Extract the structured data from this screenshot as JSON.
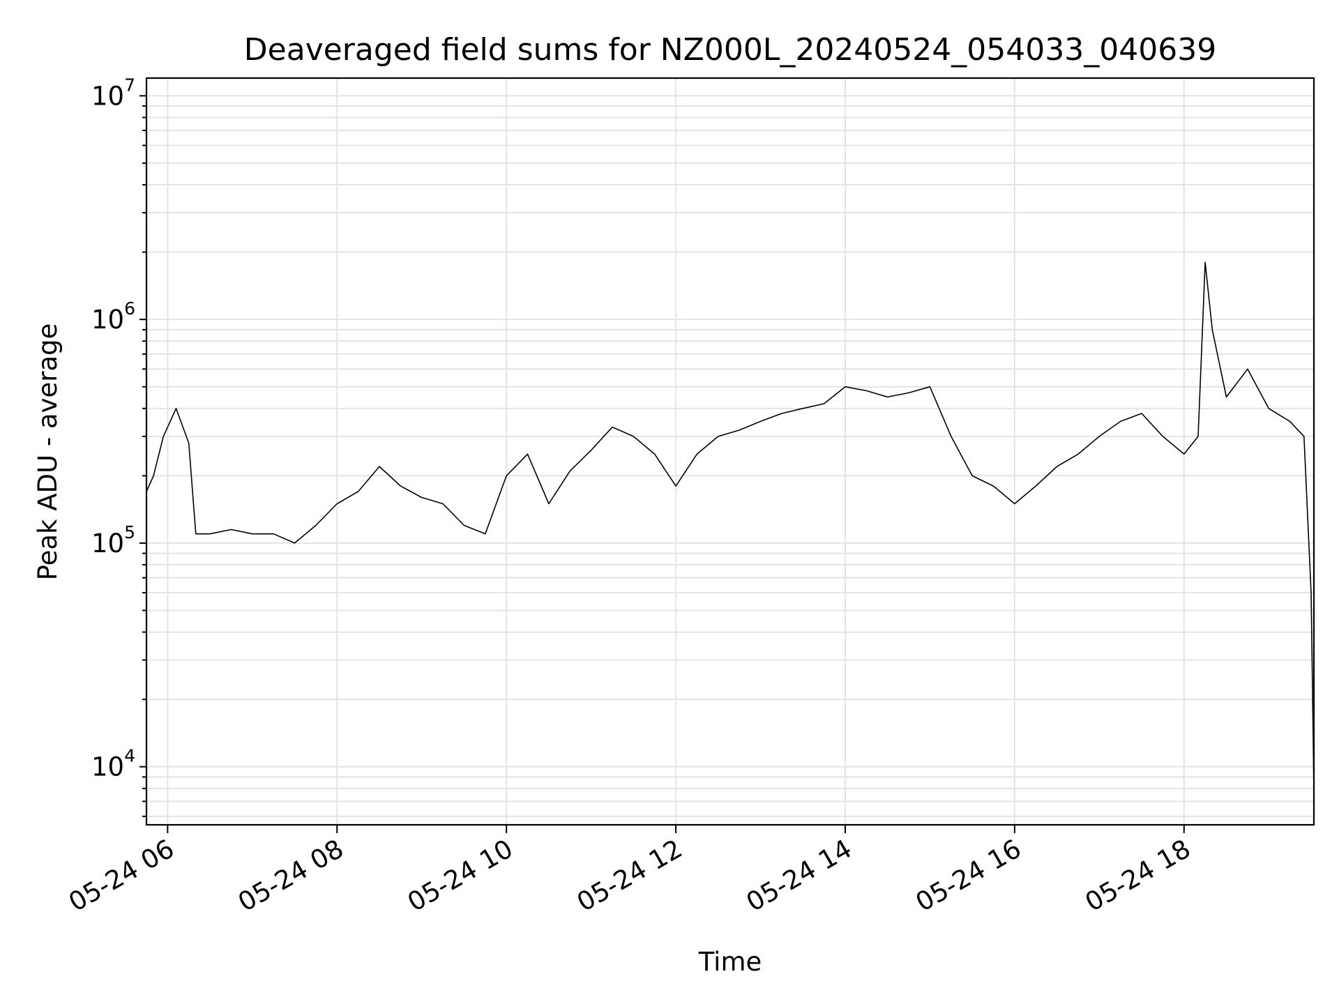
{
  "chart_data": {
    "type": "line",
    "title": "Deaveraged field sums for NZ000L_20240524_054033_040639",
    "xlabel": "Time",
    "ylabel": "Peak ADU - average",
    "x_range": [
      "05-24 05:45",
      "05-24 19:32"
    ],
    "y_range": [
      5500,
      12000000
    ],
    "y_scale": "log",
    "grid": true,
    "legend": false,
    "line_color": "#000000",
    "x_ticks": [
      "05-24 06",
      "05-24 08",
      "05-24 10",
      "05-24 12",
      "05-24 14",
      "05-24 16",
      "05-24 18"
    ],
    "y_ticks": [
      {
        "base": "10",
        "exp": "4",
        "value": 10000
      },
      {
        "base": "10",
        "exp": "5",
        "value": 100000
      },
      {
        "base": "10",
        "exp": "6",
        "value": 1000000
      },
      {
        "base": "10",
        "exp": "7",
        "value": 10000000
      }
    ],
    "series": [
      {
        "x": [
          "05-24 05:45",
          "05-24 05:50",
          "05-24 05:57",
          "05-24 06:06",
          "05-24 06:15",
          "05-24 06:20",
          "05-24 06:30",
          "05-24 06:45",
          "05-24 07:00",
          "05-24 07:15",
          "05-24 07:30",
          "05-24 07:45",
          "05-24 08:00",
          "05-24 08:15",
          "05-24 08:30",
          "05-24 08:45",
          "05-24 09:00",
          "05-24 09:15",
          "05-24 09:30",
          "05-24 09:45",
          "05-24 10:00",
          "05-24 10:15",
          "05-24 10:30",
          "05-24 10:45",
          "05-24 11:00",
          "05-24 11:15",
          "05-24 11:30",
          "05-24 11:45",
          "05-24 12:00",
          "05-24 12:15",
          "05-24 12:30",
          "05-24 12:45",
          "05-24 13:00",
          "05-24 13:15",
          "05-24 13:30",
          "05-24 13:45",
          "05-24 14:00",
          "05-24 14:15",
          "05-24 14:30",
          "05-24 14:45",
          "05-24 15:00",
          "05-24 15:15",
          "05-24 15:30",
          "05-24 15:45",
          "05-24 16:00",
          "05-24 16:15",
          "05-24 16:30",
          "05-24 16:45",
          "05-24 17:00",
          "05-24 17:15",
          "05-24 17:30",
          "05-24 17:45",
          "05-24 18:00",
          "05-24 18:10",
          "05-24 18:15",
          "05-24 18:20",
          "05-24 18:30",
          "05-24 18:45",
          "05-24 19:00",
          "05-24 19:15",
          "05-24 19:25",
          "05-24 19:30",
          "05-24 19:32"
        ],
        "y": [
          170000,
          200000,
          300000,
          400000,
          280000,
          110000,
          110000,
          115000,
          110000,
          110000,
          100000,
          120000,
          150000,
          170000,
          220000,
          180000,
          160000,
          150000,
          120000,
          110000,
          200000,
          250000,
          150000,
          210000,
          260000,
          330000,
          300000,
          250000,
          180000,
          250000,
          300000,
          320000,
          350000,
          380000,
          400000,
          420000,
          500000,
          480000,
          450000,
          470000,
          500000,
          300000,
          200000,
          180000,
          150000,
          180000,
          220000,
          250000,
          300000,
          350000,
          380000,
          300000,
          250000,
          300000,
          1800000,
          900000,
          450000,
          600000,
          400000,
          350000,
          300000,
          60000,
          8000
        ]
      }
    ]
  }
}
